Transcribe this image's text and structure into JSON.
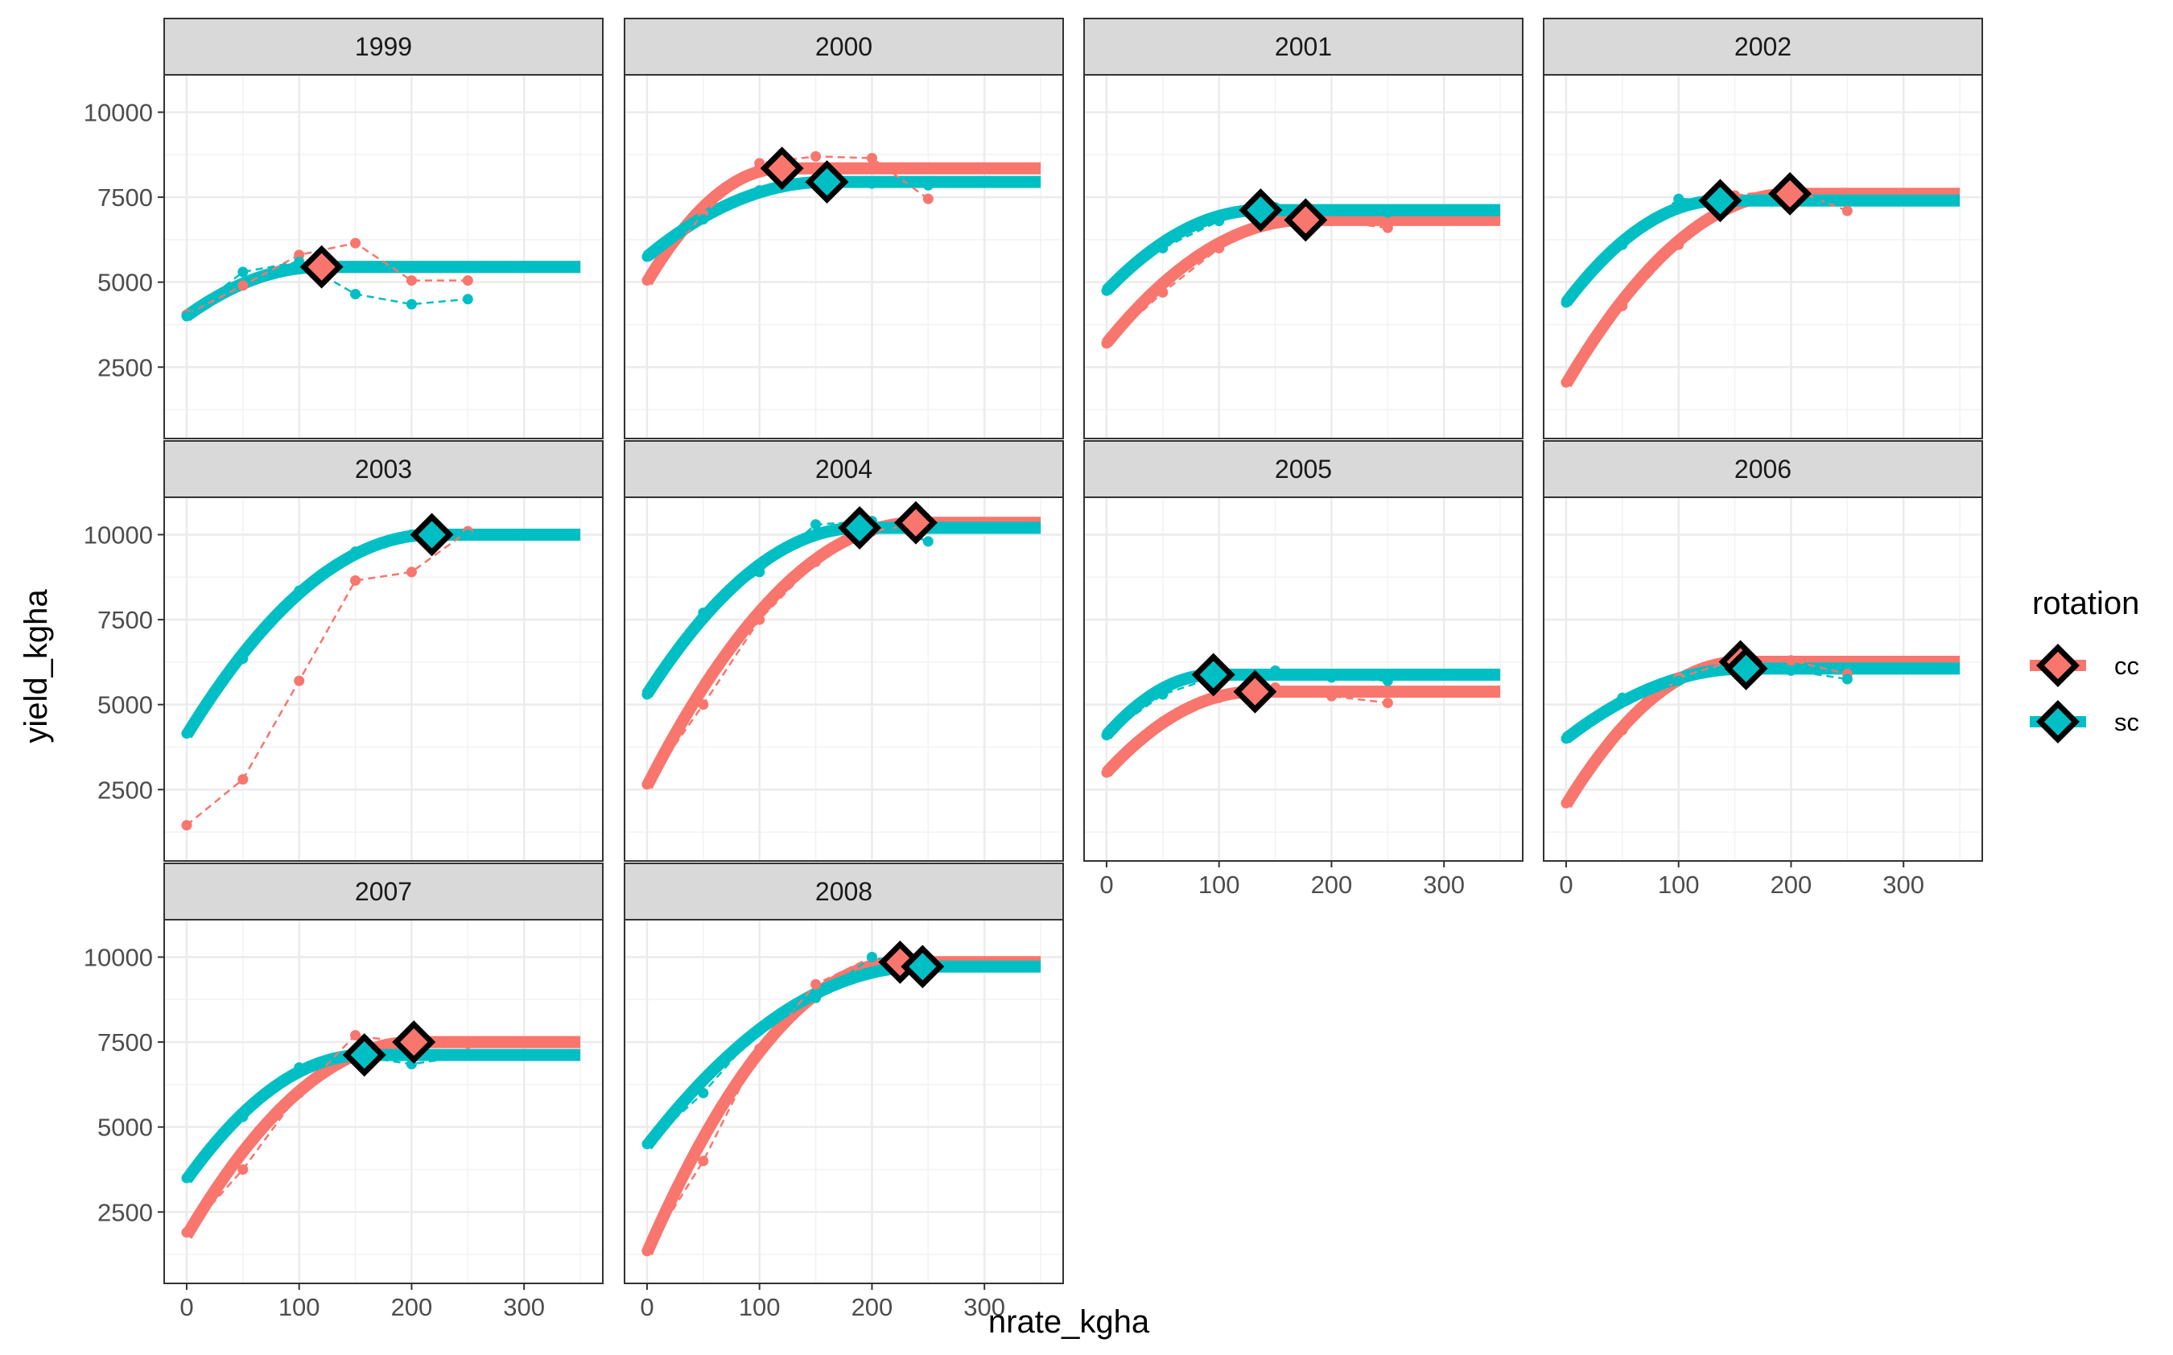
{
  "chart_data": {
    "type": "line",
    "xlabel": "nrate_kgha",
    "ylabel": "yield_kgha",
    "xlim": [
      -20,
      370
    ],
    "ylim": [
      400,
      11100
    ],
    "x_ticks": [
      0,
      100,
      200,
      300
    ],
    "y_ticks": [
      2500,
      5000,
      7500,
      10000
    ],
    "grid": true,
    "legend_title": "rotation",
    "legend_position": "right",
    "colors": {
      "cc": "#F8766D",
      "sc": "#00BFC4",
      "strip_fill": "#D9D9D9",
      "panel_border": "#333333",
      "grid": "#EBEBEB"
    },
    "series_names": [
      "cc",
      "sc"
    ],
    "fit_x_max": 350,
    "facets": [
      {
        "year": "1999",
        "cc": {
          "observed": [
            [
              0,
              4050
            ],
            [
              50,
              4900
            ],
            [
              100,
              5800
            ],
            [
              150,
              6150
            ],
            [
              200,
              5050
            ],
            [
              250,
              5050
            ]
          ],
          "plateau_start": 120,
          "plateau_yield": 5450,
          "intercept": 4000
        },
        "sc": {
          "observed": [
            [
              0,
              4000
            ],
            [
              50,
              5300
            ],
            [
              100,
              5600
            ],
            [
              150,
              4650
            ],
            [
              200,
              4350
            ],
            [
              250,
              4500
            ]
          ],
          "plateau_start": 120,
          "plateau_yield": 5450,
          "intercept": 4000
        },
        "optima": [
          {
            "rotation": "cc",
            "x": 120,
            "y": 5450
          }
        ]
      },
      {
        "year": "2000",
        "cc": {
          "observed": [
            [
              0,
              5050
            ],
            [
              50,
              7000
            ],
            [
              100,
              8500
            ],
            [
              150,
              8700
            ],
            [
              200,
              8650
            ],
            [
              250,
              7450
            ]
          ],
          "plateau_start": 120,
          "plateau_yield": 8350,
          "intercept": 5000
        },
        "sc": {
          "observed": [
            [
              0,
              5750
            ],
            [
              50,
              6850
            ],
            [
              100,
              7700
            ],
            [
              150,
              8000
            ],
            [
              200,
              7900
            ],
            [
              250,
              7850
            ]
          ],
          "plateau_start": 160,
          "plateau_yield": 7950,
          "intercept": 5750
        },
        "optima": [
          {
            "rotation": "cc",
            "x": 120,
            "y": 8350
          },
          {
            "rotation": "sc",
            "x": 160,
            "y": 7950
          }
        ]
      },
      {
        "year": "2001",
        "cc": {
          "observed": [
            [
              0,
              3200
            ],
            [
              50,
              4700
            ],
            [
              100,
              6000
            ],
            [
              150,
              6750
            ],
            [
              200,
              6800
            ],
            [
              250,
              6600
            ]
          ],
          "plateau_start": 177,
          "plateau_yield": 6830,
          "intercept": 3200
        },
        "sc": {
          "observed": [
            [
              0,
              4750
            ],
            [
              50,
              6000
            ],
            [
              100,
              6800
            ],
            [
              150,
              7200
            ],
            [
              200,
              7100
            ],
            [
              250,
              7050
            ]
          ],
          "plateau_start": 137,
          "plateau_yield": 7120,
          "intercept": 4750
        },
        "optima": [
          {
            "rotation": "sc",
            "x": 137,
            "y": 7120
          },
          {
            "rotation": "cc",
            "x": 177,
            "y": 6830
          }
        ]
      },
      {
        "year": "2002",
        "cc": {
          "observed": [
            [
              0,
              2050
            ],
            [
              50,
              4300
            ],
            [
              100,
              6100
            ],
            [
              150,
              7550
            ],
            [
              200,
              7750
            ],
            [
              250,
              7100
            ]
          ],
          "plateau_start": 199,
          "plateau_yield": 7600,
          "intercept": 2000
        },
        "sc": {
          "observed": [
            [
              0,
              4400
            ],
            [
              50,
              6100
            ],
            [
              100,
              7450
            ],
            [
              150,
              7400
            ],
            [
              200,
              7450
            ],
            [
              250,
              7400
            ]
          ],
          "plateau_start": 137,
          "plateau_yield": 7400,
          "intercept": 4400
        },
        "optima": [
          {
            "rotation": "sc",
            "x": 137,
            "y": 7400
          },
          {
            "rotation": "cc",
            "x": 199,
            "y": 7600
          }
        ]
      },
      {
        "year": "2003",
        "cc": {
          "observed": [
            [
              0,
              1450
            ],
            [
              50,
              2800
            ],
            [
              100,
              5700
            ],
            [
              150,
              8650
            ],
            [
              200,
              8900
            ],
            [
              250,
              10100
            ]
          ],
          "plateau_start": null,
          "plateau_yield": null,
          "intercept": null
        },
        "sc": {
          "observed": [
            [
              0,
              4150
            ],
            [
              50,
              6350
            ],
            [
              100,
              8350
            ],
            [
              150,
              9500
            ],
            [
              200,
              10000
            ],
            [
              250,
              10000
            ]
          ],
          "plateau_start": 218,
          "plateau_yield": 10000,
          "intercept": 4100
        },
        "optima": [
          {
            "rotation": "sc",
            "x": 218,
            "y": 10000
          }
        ]
      },
      {
        "year": "2004",
        "cc": {
          "observed": [
            [
              0,
              2650
            ],
            [
              50,
              5000
            ],
            [
              100,
              7500
            ],
            [
              150,
              9200
            ],
            [
              200,
              10100
            ],
            [
              250,
              10350
            ]
          ],
          "plateau_start": 239,
          "plateau_yield": 10350,
          "intercept": 2600
        },
        "sc": {
          "observed": [
            [
              0,
              5300
            ],
            [
              50,
              7700
            ],
            [
              100,
              8900
            ],
            [
              150,
              10300
            ],
            [
              200,
              10400
            ],
            [
              250,
              9800
            ]
          ],
          "plateau_start": 189,
          "plateau_yield": 10200,
          "intercept": 5300
        },
        "optima": [
          {
            "rotation": "sc",
            "x": 189,
            "y": 10200
          },
          {
            "rotation": "cc",
            "x": 239,
            "y": 10350
          }
        ]
      },
      {
        "year": "2005",
        "cc": {
          "observed": [
            [
              0,
              3000
            ],
            [
              50,
              4500
            ],
            [
              100,
              5200
            ],
            [
              150,
              5500
            ],
            [
              200,
              5250
            ],
            [
              250,
              5050
            ]
          ],
          "plateau_start": 132,
          "plateau_yield": 5380,
          "intercept": 3000
        },
        "sc": {
          "observed": [
            [
              0,
              4100
            ],
            [
              50,
              5300
            ],
            [
              100,
              5850
            ],
            [
              150,
              6000
            ],
            [
              200,
              5800
            ],
            [
              250,
              5700
            ]
          ],
          "plateau_start": 95,
          "plateau_yield": 5880,
          "intercept": 4100
        },
        "optima": [
          {
            "rotation": "sc",
            "x": 95,
            "y": 5880
          },
          {
            "rotation": "cc",
            "x": 132,
            "y": 5380
          }
        ]
      },
      {
        "year": "2006",
        "cc": {
          "observed": [
            [
              0,
              2100
            ],
            [
              50,
              4250
            ],
            [
              100,
              5800
            ],
            [
              150,
              6300
            ],
            [
              200,
              6300
            ],
            [
              250,
              5900
            ]
          ],
          "plateau_start": 155,
          "plateau_yield": 6260,
          "intercept": 2050
        },
        "sc": {
          "observed": [
            [
              0,
              4000
            ],
            [
              50,
              5200
            ],
            [
              100,
              5700
            ],
            [
              150,
              6050
            ],
            [
              200,
              6000
            ],
            [
              250,
              5750
            ]
          ],
          "plateau_start": 160,
          "plateau_yield": 6060,
          "intercept": 4000
        },
        "optima": [
          {
            "rotation": "cc",
            "x": 155,
            "y": 6260
          },
          {
            "rotation": "sc",
            "x": 160,
            "y": 6060
          }
        ]
      },
      {
        "year": "2007",
        "cc": {
          "observed": [
            [
              0,
              1900
            ],
            [
              50,
              3750
            ],
            [
              100,
              6000
            ],
            [
              150,
              7700
            ],
            [
              200,
              7450
            ],
            [
              250,
              7450
            ]
          ],
          "plateau_start": 202,
          "plateau_yield": 7500,
          "intercept": 1800
        },
        "sc": {
          "observed": [
            [
              0,
              3500
            ],
            [
              50,
              5300
            ],
            [
              100,
              6750
            ],
            [
              150,
              7100
            ],
            [
              200,
              6850
            ],
            [
              250,
              7100
            ]
          ],
          "plateau_start": 158,
          "plateau_yield": 7120,
          "intercept": 3450
        },
        "optima": [
          {
            "rotation": "sc",
            "x": 158,
            "y": 7120
          },
          {
            "rotation": "cc",
            "x": 202,
            "y": 7500
          }
        ]
      },
      {
        "year": "2008",
        "cc": {
          "observed": [
            [
              0,
              1350
            ],
            [
              50,
              4000
            ],
            [
              100,
              7300
            ],
            [
              150,
              9200
            ],
            [
              200,
              10000
            ],
            [
              250,
              9700
            ]
          ],
          "plateau_start": 225,
          "plateau_yield": 9850,
          "intercept": 1300
        },
        "sc": {
          "observed": [
            [
              0,
              4500
            ],
            [
              50,
              6000
            ],
            [
              100,
              7900
            ],
            [
              150,
              8800
            ],
            [
              200,
              10000
            ],
            [
              250,
              9650
            ]
          ],
          "plateau_start": 245,
          "plateau_yield": 9720,
          "intercept": 4450
        },
        "optima": [
          {
            "rotation": "cc",
            "x": 225,
            "y": 9850
          },
          {
            "rotation": "sc",
            "x": 245,
            "y": 9720
          }
        ]
      }
    ]
  }
}
